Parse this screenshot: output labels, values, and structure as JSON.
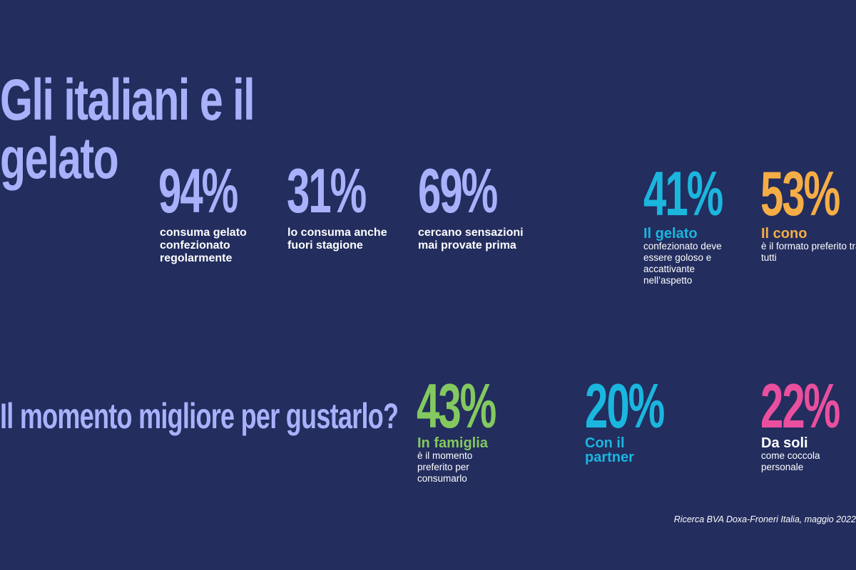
{
  "title": "Gli italiani e il gelato",
  "question": "Il momento migliore per gustarlo?",
  "colors": {
    "background": "#232d5e",
    "lavender": "#a9b1fb",
    "cyan": "#1ab6de",
    "orange": "#f5ad45",
    "green": "#84c95f",
    "pink": "#e94f9e"
  },
  "stats_top": [
    {
      "value": "94%",
      "text": "consuma gelato confezionato regolarmente"
    },
    {
      "value": "31%",
      "text": "lo consuma anche fuori stagione"
    },
    {
      "value": "69%",
      "text": "cercano sensazioni mai provate prima"
    }
  ],
  "stats_right": [
    {
      "value": "41%",
      "heading": "Il gelato",
      "text": "confezionato deve essere goloso e accattivante nell’aspetto"
    },
    {
      "value": "53%",
      "heading": "Il cono",
      "text": "è il formato preferito tra tutti"
    }
  ],
  "moments": [
    {
      "value": "43%",
      "heading": "In famiglia",
      "text": "è il momento preferito per consumarlo"
    },
    {
      "value": "20%",
      "heading": "Con il partner",
      "text": ""
    },
    {
      "value": "22%",
      "heading": "Da soli",
      "text": "come coccola personale"
    }
  ],
  "source": "Ricerca BVA Doxa-Froneri Italia, maggio 2022"
}
